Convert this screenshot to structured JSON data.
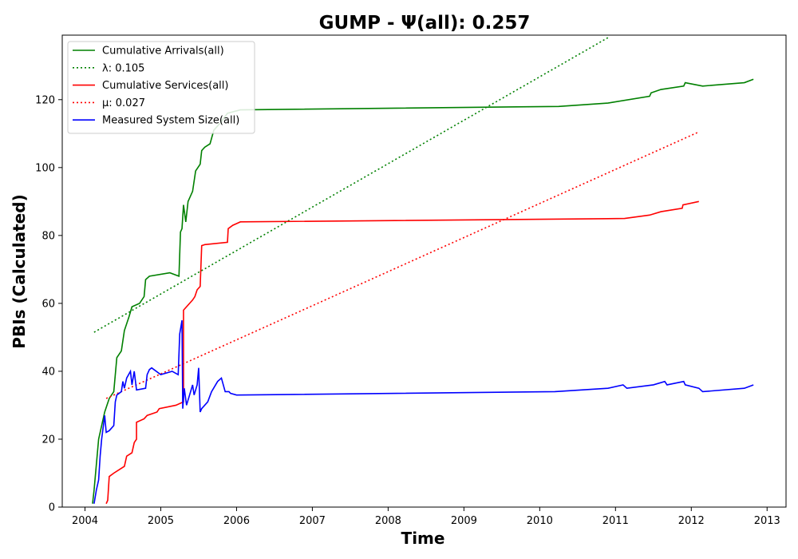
{
  "chart_data": {
    "type": "line",
    "title": "GUMP -  Ψ(all): 0.257",
    "xlabel": "Time",
    "ylabel": "PBIs (Calculated)",
    "xlim": [
      2003.7,
      2013.25
    ],
    "ylim": [
      0,
      139
    ],
    "x_ticks": [
      2004,
      2005,
      2006,
      2007,
      2008,
      2009,
      2010,
      2011,
      2012,
      2013
    ],
    "y_ticks": [
      0,
      20,
      40,
      60,
      80,
      100,
      120
    ],
    "grid": false,
    "legend_position": "top-left",
    "series": [
      {
        "name": "Cumulative Arrivals(all)",
        "color": "#008000",
        "style": "solid",
        "points": [
          [
            2004.1,
            1
          ],
          [
            2004.12,
            5
          ],
          [
            2004.18,
            20
          ],
          [
            2004.26,
            28
          ],
          [
            2004.32,
            32
          ],
          [
            2004.38,
            34
          ],
          [
            2004.42,
            44
          ],
          [
            2004.48,
            46
          ],
          [
            2004.52,
            52
          ],
          [
            2004.58,
            56
          ],
          [
            2004.62,
            59
          ],
          [
            2004.72,
            60
          ],
          [
            2004.78,
            62
          ],
          [
            2004.8,
            67
          ],
          [
            2004.85,
            68
          ],
          [
            2005.12,
            69
          ],
          [
            2005.24,
            68
          ],
          [
            2005.26,
            81
          ],
          [
            2005.28,
            82
          ],
          [
            2005.3,
            89
          ],
          [
            2005.33,
            84
          ],
          [
            2005.36,
            90
          ],
          [
            2005.42,
            93
          ],
          [
            2005.46,
            99
          ],
          [
            2005.52,
            101
          ],
          [
            2005.54,
            105
          ],
          [
            2005.58,
            106
          ],
          [
            2005.65,
            107
          ],
          [
            2005.7,
            111
          ],
          [
            2005.78,
            113
          ],
          [
            2005.88,
            116
          ],
          [
            2006.05,
            117
          ],
          [
            2010.25,
            118
          ],
          [
            2010.9,
            119
          ],
          [
            2011.45,
            121
          ],
          [
            2011.47,
            122
          ],
          [
            2011.6,
            123
          ],
          [
            2011.9,
            124
          ],
          [
            2011.92,
            125
          ],
          [
            2012.15,
            124
          ],
          [
            2012.7,
            125
          ],
          [
            2012.82,
            126
          ]
        ]
      },
      {
        "name": "λ: 0.105",
        "color": "#008000",
        "style": "dotted",
        "points": [
          [
            2004.12,
            51.5
          ],
          [
            2010.92,
            138.5
          ]
        ]
      },
      {
        "name": "Cumulative Services(all)",
        "color": "#ff0000",
        "style": "solid",
        "points": [
          [
            2004.28,
            1
          ],
          [
            2004.3,
            2
          ],
          [
            2004.32,
            9
          ],
          [
            2004.38,
            10
          ],
          [
            2004.52,
            12
          ],
          [
            2004.55,
            15
          ],
          [
            2004.62,
            16
          ],
          [
            2004.65,
            19
          ],
          [
            2004.68,
            20
          ],
          [
            2004.68,
            25
          ],
          [
            2004.78,
            26
          ],
          [
            2004.82,
            27
          ],
          [
            2004.95,
            28
          ],
          [
            2004.98,
            29
          ],
          [
            2005.2,
            30
          ],
          [
            2005.3,
            31
          ],
          [
            2005.3,
            58
          ],
          [
            2005.38,
            60
          ],
          [
            2005.42,
            61
          ],
          [
            2005.45,
            62
          ],
          [
            2005.48,
            64
          ],
          [
            2005.52,
            65
          ],
          [
            2005.54,
            77
          ],
          [
            2005.58,
            77.3
          ],
          [
            2005.88,
            78
          ],
          [
            2005.89,
            82
          ],
          [
            2005.95,
            83
          ],
          [
            2006.0,
            83.5
          ],
          [
            2006.05,
            84
          ],
          [
            2011.12,
            85
          ],
          [
            2011.45,
            86
          ],
          [
            2011.6,
            87
          ],
          [
            2011.88,
            88
          ],
          [
            2011.89,
            89
          ],
          [
            2012.1,
            90
          ]
        ]
      },
      {
        "name": "μ: 0.027",
        "color": "#ff0000",
        "style": "dotted",
        "points": [
          [
            2004.28,
            32
          ],
          [
            2012.1,
            110.5
          ]
        ]
      },
      {
        "name": "Measured System Size(all)",
        "color": "#0000ff",
        "style": "solid",
        "points": [
          [
            2004.12,
            1
          ],
          [
            2004.15,
            5
          ],
          [
            2004.18,
            8
          ],
          [
            2004.2,
            15
          ],
          [
            2004.22,
            20
          ],
          [
            2004.26,
            27
          ],
          [
            2004.28,
            22
          ],
          [
            2004.32,
            22.5
          ],
          [
            2004.38,
            24
          ],
          [
            2004.4,
            31
          ],
          [
            2004.42,
            33
          ],
          [
            2004.48,
            34
          ],
          [
            2004.5,
            37
          ],
          [
            2004.52,
            35
          ],
          [
            2004.55,
            38
          ],
          [
            2004.6,
            40
          ],
          [
            2004.62,
            36
          ],
          [
            2004.65,
            40
          ],
          [
            2004.68,
            34.5
          ],
          [
            2004.8,
            35
          ],
          [
            2004.82,
            39
          ],
          [
            2004.85,
            40.5
          ],
          [
            2004.88,
            41
          ],
          [
            2005.0,
            39
          ],
          [
            2005.15,
            40
          ],
          [
            2005.23,
            39
          ],
          [
            2005.25,
            51
          ],
          [
            2005.28,
            55
          ],
          [
            2005.29,
            29
          ],
          [
            2005.31,
            35
          ],
          [
            2005.34,
            30
          ],
          [
            2005.38,
            33
          ],
          [
            2005.42,
            36
          ],
          [
            2005.44,
            33
          ],
          [
            2005.48,
            36
          ],
          [
            2005.5,
            41
          ],
          [
            2005.52,
            28
          ],
          [
            2005.54,
            29
          ],
          [
            2005.62,
            31
          ],
          [
            2005.67,
            34
          ],
          [
            2005.75,
            37
          ],
          [
            2005.8,
            38
          ],
          [
            2005.85,
            34
          ],
          [
            2005.9,
            34
          ],
          [
            2005.92,
            33.5
          ],
          [
            2006.0,
            33
          ],
          [
            2010.2,
            34
          ],
          [
            2010.9,
            35
          ],
          [
            2011.1,
            36
          ],
          [
            2011.15,
            35
          ],
          [
            2011.5,
            36
          ],
          [
            2011.65,
            37
          ],
          [
            2011.68,
            36
          ],
          [
            2011.9,
            37
          ],
          [
            2011.92,
            36
          ],
          [
            2012.1,
            35
          ],
          [
            2012.15,
            34
          ],
          [
            2012.7,
            35
          ],
          [
            2012.82,
            36
          ]
        ]
      }
    ]
  }
}
